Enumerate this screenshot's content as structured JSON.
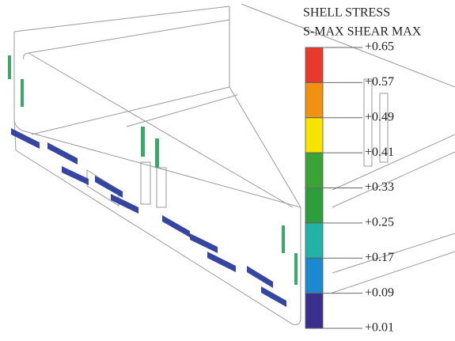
{
  "legend": {
    "title": [
      "SHELL STRESS",
      "S-MAX SHEAR MAX"
    ],
    "ticks": [
      {
        "value": 0.65,
        "label": "+0.65"
      },
      {
        "value": 0.57,
        "label": "+0.57"
      },
      {
        "value": 0.49,
        "label": "+0.49"
      },
      {
        "value": 0.41,
        "label": "+0.41"
      },
      {
        "value": 0.33,
        "label": "+0.33"
      },
      {
        "value": 0.25,
        "label": "+0.25"
      },
      {
        "value": 0.17,
        "label": "+0.17"
      },
      {
        "value": 0.09,
        "label": "+0.09"
      },
      {
        "value": 0.01,
        "label": "+0.01"
      }
    ],
    "colors": [
      "#e8392a",
      "#f0920f",
      "#f5e400",
      "#3aa535",
      "#2d9e3c",
      "#20b3a6",
      "#1b88d2",
      "#3a2f8c"
    ]
  }
}
